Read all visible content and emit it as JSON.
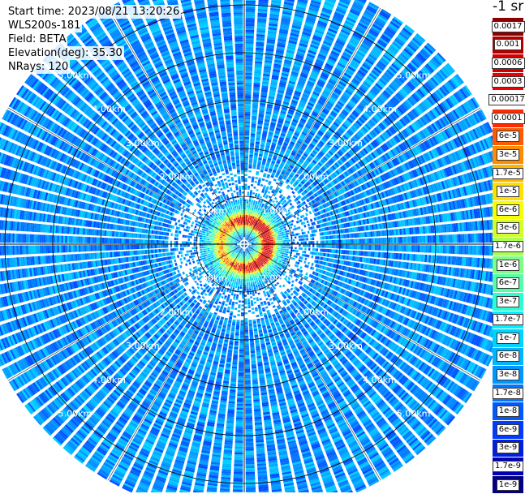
{
  "info": {
    "start_time": "Start time: 2023/08/21 13:20:26",
    "instrument": "WLS200s-181",
    "field": "Field: BETA",
    "elevation": "Elevation(deg): 35.30",
    "nrays": "NRays: 120"
  },
  "colorbar": {
    "unit_label": "-1 sr",
    "entries": [
      {
        "label": "0.0017",
        "color": "#8b0000"
      },
      {
        "label": "0.001",
        "color": "#b00000"
      },
      {
        "label": "0.0006",
        "color": "#d40000"
      },
      {
        "label": "0.0003",
        "color": "#f00000"
      },
      {
        "label": "0.00017",
        "color": "#ffffff"
      },
      {
        "label": "0.0001",
        "color": "#ff2a00"
      },
      {
        "label": "6e-5",
        "color": "#ff5a00"
      },
      {
        "label": "3e-5",
        "color": "#ff8c00"
      },
      {
        "label": "1.7e-5",
        "color": "#ffb400"
      },
      {
        "label": "1e-5",
        "color": "#ffe000"
      },
      {
        "label": "6e-6",
        "color": "#f4ff00"
      },
      {
        "label": "3e-6",
        "color": "#d2ff2a"
      },
      {
        "label": "1.7e-6",
        "color": "#aaff55"
      },
      {
        "label": "1e-6",
        "color": "#7dff82"
      },
      {
        "label": "6e-7",
        "color": "#55ffaa"
      },
      {
        "label": "3e-7",
        "color": "#2affd4"
      },
      {
        "label": "1.7e-7",
        "color": "#00f0ff"
      },
      {
        "label": "1e-7",
        "color": "#00d2ff"
      },
      {
        "label": "6e-8",
        "color": "#00b4ff"
      },
      {
        "label": "3e-8",
        "color": "#0096ff"
      },
      {
        "label": "1.7e-8",
        "color": "#0078ff"
      },
      {
        "label": "1e-8",
        "color": "#005aff"
      },
      {
        "label": "6e-9",
        "color": "#003cff"
      },
      {
        "label": "3e-9",
        "color": "#001edc"
      },
      {
        "label": "1.7e-9",
        "color": "#0000b4"
      },
      {
        "label": "1e-9",
        "color": "#000080"
      }
    ]
  },
  "chart_data": {
    "type": "heatmap",
    "projection": "polar (PPI scan)",
    "field": "BETA",
    "elevation_deg": 35.3,
    "n_rays": 120,
    "range_rings_km": [
      1,
      2,
      3,
      4,
      5
    ],
    "range_labels": [
      "1.00km",
      "2.00km",
      "3.00km",
      "4.00km",
      "5.00km"
    ],
    "max_range_km": 5.7,
    "color_scale": "log",
    "value_range": [
      1e-09,
      0.0017
    ],
    "typical_far_value": 3e-08,
    "near_center_max_value": 0.0003,
    "grid": true
  }
}
